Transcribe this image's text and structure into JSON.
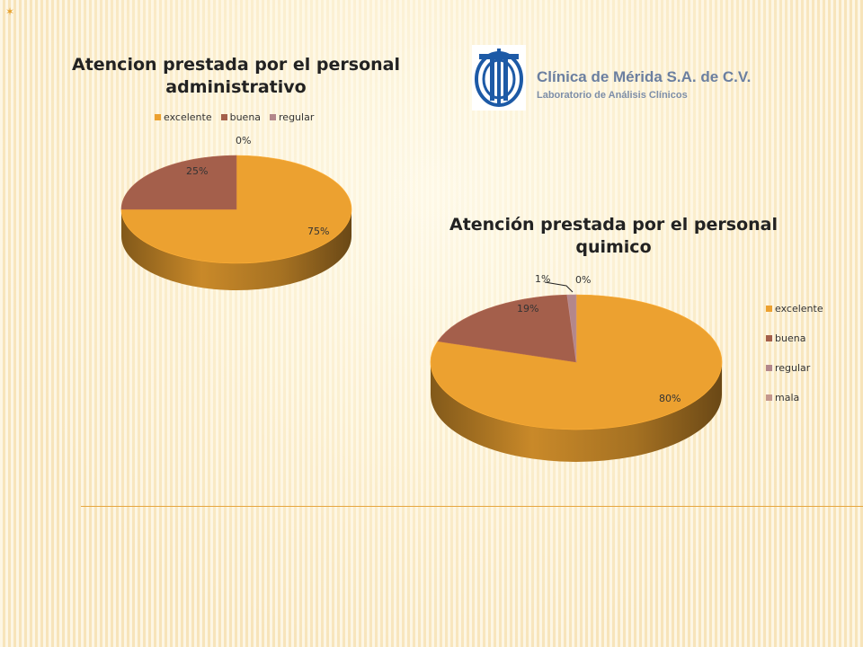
{
  "brand": {
    "name": "Clínica de Mérida S.A. de C.V.",
    "subtitle": "Laboratorio de Análisis Clínicos"
  },
  "chart_data": [
    {
      "type": "pie",
      "title": "Atencion prestada por el personal administrativo",
      "categories": [
        "excelente",
        "buena",
        "regular"
      ],
      "values": [
        75,
        25,
        0
      ],
      "data_labels": [
        "75%",
        "25%",
        "0%"
      ],
      "colors": [
        "#eca130",
        "#a45f4b",
        "#b3878b"
      ],
      "legend": "top",
      "style": "3d"
    },
    {
      "type": "pie",
      "title": "Atención prestada por el personal quimico",
      "categories": [
        "excelente",
        "buena",
        "regular",
        "mala"
      ],
      "values": [
        80,
        19,
        1,
        0
      ],
      "data_labels": [
        "80%",
        "19%",
        "1%",
        "0%"
      ],
      "colors": [
        "#eca130",
        "#a45f4b",
        "#b3878b",
        "#c4978d"
      ],
      "legend": "right",
      "style": "3d"
    }
  ]
}
